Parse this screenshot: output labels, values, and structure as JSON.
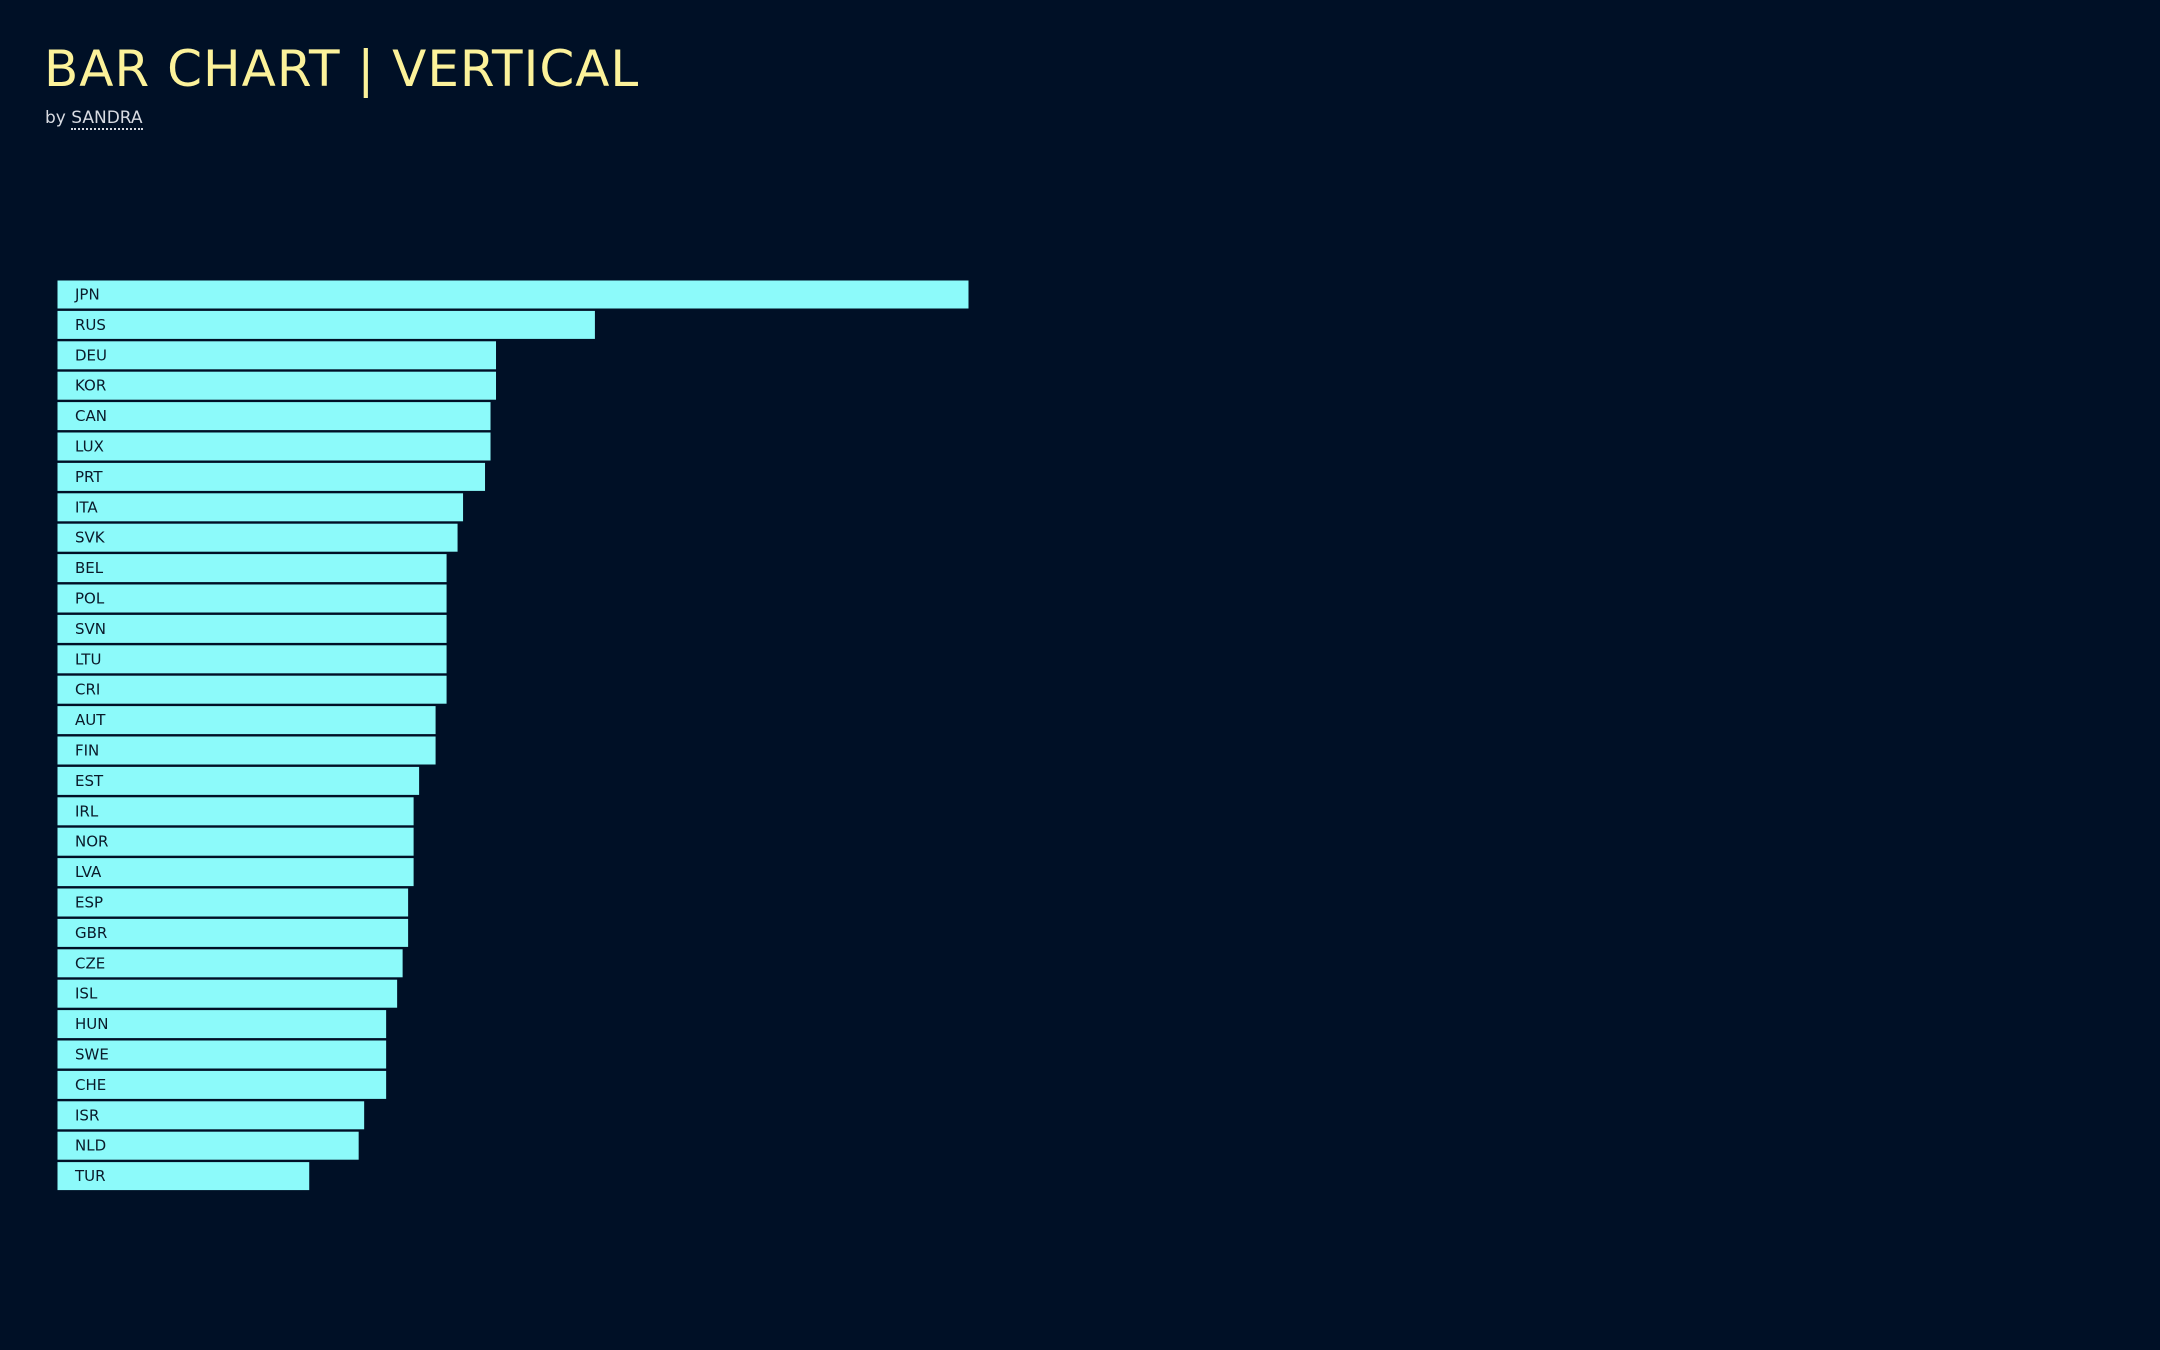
{
  "header": {
    "title": "BAR CHART | VERTICAL",
    "byline_prefix": "by",
    "author": "SANDRA"
  },
  "colors": {
    "background": "#001026",
    "title": "#fcf29a",
    "bar_fill": "#8cfafa",
    "bar_stroke": "#001026",
    "bar_label": "#0a1a2a"
  },
  "chart_data": {
    "type": "bar",
    "orientation": "horizontal",
    "title": "",
    "xlabel": "",
    "ylabel": "",
    "grid": false,
    "legend": "none",
    "xlim": [
      0,
      83
    ],
    "categories": [
      "JPN",
      "RUS",
      "DEU",
      "KOR",
      "CAN",
      "LUX",
      "PRT",
      "ITA",
      "SVK",
      "BEL",
      "POL",
      "SVN",
      "LTU",
      "CRI",
      "AUT",
      "FIN",
      "EST",
      "IRL",
      "NOR",
      "LVA",
      "ESP",
      "GBR",
      "CZE",
      "ISL",
      "HUN",
      "SWE",
      "CHE",
      "ISR",
      "NLD",
      "TUR"
    ],
    "values": [
      83,
      49,
      40,
      40,
      39.5,
      39.5,
      39,
      37,
      36.5,
      35.5,
      35.5,
      35.5,
      35.5,
      35.5,
      34.5,
      34.5,
      33,
      32.5,
      32.5,
      32.5,
      32,
      32,
      31.5,
      31,
      30,
      30,
      30,
      28,
      27.5,
      23
    ]
  }
}
